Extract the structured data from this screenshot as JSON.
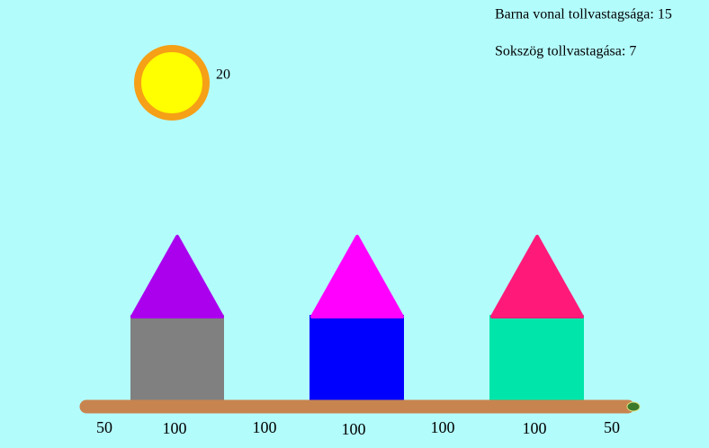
{
  "info": {
    "line_width": "Barna vonal tollvastagsága: 15",
    "polygon_width": "Sokszög tollvastagása: 7"
  },
  "sun": {
    "label": "20"
  },
  "ground": {
    "labels": [
      "50",
      "100",
      "100",
      "100",
      "100",
      "100",
      "50"
    ]
  }
}
